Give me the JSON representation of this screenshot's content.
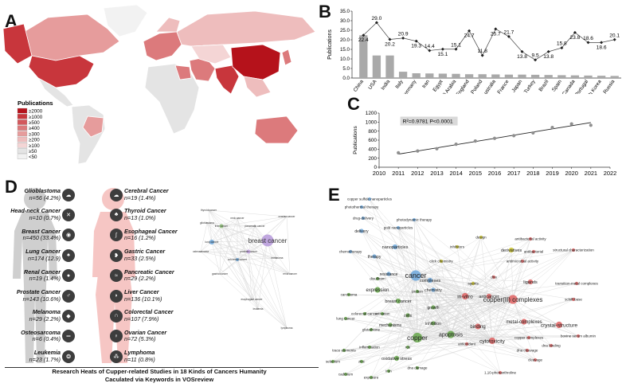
{
  "panels": {
    "a": "A",
    "b": "B",
    "c": "C",
    "d": "D",
    "e": "E"
  },
  "map_legend": {
    "title": "Publications",
    "levels": [
      "≥2000",
      "≥1000",
      "≥500",
      "≥400",
      "≥300",
      "≥200",
      "≥100",
      "≥50",
      "<50"
    ],
    "colors": [
      "#b5121b",
      "#c8363c",
      "#d3585c",
      "#dc7a7c",
      "#e69c9c",
      "#eebdbd",
      "#f4d5d5",
      "#e4e4e4",
      "#f2f2f2"
    ]
  },
  "chart_data": [
    {
      "type": "bar",
      "panel": "B",
      "categories": [
        "China",
        "USA",
        "India",
        "Italy",
        "Germany",
        "Iran",
        "Egypt",
        "Saudi Arabia",
        "England",
        "Poland",
        "Australia",
        "France",
        "Japan",
        "Turkey",
        "Brazil",
        "Spain",
        "Canada",
        "Portugal",
        "South Korea",
        "Russia"
      ],
      "series": [
        {
          "kind": "bar",
          "values": [
            22.4,
            11.8,
            11.8,
            3.3,
            2.5,
            2.4,
            2.3,
            2.2,
            2.0,
            2.0,
            1.9,
            1.8,
            1.8,
            1.7,
            1.6,
            1.5,
            1.4,
            1.3,
            1.2,
            1.1
          ]
        },
        {
          "kind": "line",
          "values": [
            22.4,
            29.0,
            20.2,
            20.9,
            19.3,
            14.4,
            15.1,
            15.1,
            24.7,
            11.8,
            25.7,
            21.7,
            13.8,
            9.5,
            13.8,
            15.8,
            23.8,
            18.6,
            18.6,
            20.1
          ]
        }
      ],
      "line_labels": [
        "22.4",
        "29.0",
        "20.2",
        "20.9",
        "19.3",
        "14.4",
        "15.1",
        "15.1",
        "24.7",
        "11.8",
        "25.7",
        "21.7",
        "13.8",
        "9.5",
        "13.8",
        "15.8",
        "23.8",
        "18.6",
        "18.6",
        "20.1"
      ],
      "ylabel": "Publications",
      "yticks": [
        "0.0",
        "5.0",
        "10.0",
        "15.0",
        "20.0",
        "25.0",
        "30.0",
        "35.0"
      ],
      "ylim": [
        0,
        35
      ],
      "colors": {
        "bar": "#a9a9a9",
        "line": "#444444"
      }
    },
    {
      "type": "scatter",
      "panel": "C",
      "x": [
        2011,
        2012,
        2013,
        2014,
        2015,
        2016,
        2017,
        2018,
        2019,
        2020,
        2021
      ],
      "y": [
        320,
        360,
        410,
        510,
        580,
        640,
        700,
        760,
        880,
        960,
        930
      ],
      "trend": {
        "x": [
          2011,
          2021
        ],
        "y": [
          290,
          990
        ]
      },
      "annotation": "R²=0.9781  P<0.0001",
      "ylabel": "Publications",
      "xticks": [
        "2010",
        "2011",
        "2012",
        "2013",
        "2014",
        "2015",
        "2016",
        "2017",
        "2018",
        "2019",
        "2020",
        "2021",
        "2022"
      ],
      "yticks": [
        "0",
        "200",
        "400",
        "600",
        "800",
        "1000",
        "1200"
      ],
      "xlim": [
        2010,
        2022
      ],
      "ylim": [
        0,
        1200
      ],
      "colors": {
        "point": "#8f8f8f",
        "line": "#222222"
      }
    }
  ],
  "cancers_left": [
    {
      "name": "Glioblastoma",
      "count": "n=56 (4.2%)",
      "icon": "brain-icon",
      "glyph": "☁"
    },
    {
      "name": "Head-neck Cancer",
      "count": "n=10 (0.7%)",
      "icon": "throat-icon",
      "glyph": "✕"
    },
    {
      "name": "Breast Cancer",
      "count": "n=450 (33.4%)",
      "icon": "breast-icon",
      "glyph": "◉"
    },
    {
      "name": "Lung Cancer",
      "count": "n=174 (12.9)",
      "icon": "lung-icon",
      "glyph": "♠"
    },
    {
      "name": "Renal Cancer",
      "count": "n=19 (1.4%)",
      "icon": "kidney-icon",
      "glyph": "●"
    },
    {
      "name": "Prostate Cancer",
      "count": "n=143 (10.6%)",
      "icon": "prostate-icon",
      "glyph": "♂"
    },
    {
      "name": "Melanoma",
      "count": "n=29 (2.2%)",
      "icon": "skin-icon",
      "glyph": "◆"
    },
    {
      "name": "Osteosarcoma",
      "count": "n=6 (0.4%)",
      "icon": "bone-icon",
      "glyph": "═"
    },
    {
      "name": "Leukemia",
      "count": "n=23 (1.7%)",
      "icon": "blood-cell-icon",
      "glyph": "❂"
    }
  ],
  "cancers_right": [
    {
      "name": "Cerebral Cancer",
      "count": "n=19 (1.4%)",
      "icon": "brain-icon",
      "glyph": "☁"
    },
    {
      "name": "Thyroid Cancer",
      "count": "n=13 (1.0%)",
      "icon": "thyroid-icon",
      "glyph": "♣"
    },
    {
      "name": "Esophageal Cancer",
      "count": "n=16 (1.2%)",
      "icon": "esophagus-icon",
      "glyph": "∫"
    },
    {
      "name": "Gastric Cancer",
      "count": "n=33 (2.5%)",
      "icon": "stomach-icon",
      "glyph": "❥"
    },
    {
      "name": "Pancreatic Cancer",
      "count": "n=29 (2.2%)",
      "icon": "pancreas-icon",
      "glyph": "≈"
    },
    {
      "name": "Liver Cancer",
      "count": "n=136 (10.1%)",
      "icon": "liver-icon",
      "glyph": "◗"
    },
    {
      "name": "Colorectal Cancer",
      "count": "n=107 (7.9%)",
      "icon": "colon-icon",
      "glyph": "∩"
    },
    {
      "name": "Ovarian Cancer",
      "count": "n=72 (5.3%)",
      "icon": "ovary-icon",
      "glyph": "♀"
    },
    {
      "name": "Lymphoma",
      "count": "n=11 (0.8%)",
      "icon": "lymph-icon",
      "glyph": "⁂"
    }
  ],
  "caption": [
    "Research Heats of Cupper-related Studies in 18 Kinds of Cancers Humanity",
    "Caculated via Keywords in VOSreview"
  ],
  "network_small": {
    "nodes": [
      {
        "label": "breast cancer",
        "color": "#b99ddc",
        "size": 15
      },
      {
        "label": "lung cancer",
        "color": "#6fa8dc",
        "size": 6
      },
      {
        "label": "liver cancer",
        "color": "#93c47d",
        "size": 5
      },
      {
        "label": "prostate cancer",
        "color": "#c9a8e8",
        "size": 5
      },
      {
        "label": "colorectal cancer",
        "color": "#6fa8dc",
        "size": 4
      },
      {
        "label": "pancreatic cancer",
        "color": "#ccc",
        "size": 3
      },
      {
        "label": "neck cancer",
        "color": "#ccc",
        "size": 2
      },
      {
        "label": "glioblastoma",
        "color": "#ccc",
        "size": 2
      },
      {
        "label": "thyroid cancer",
        "color": "#ccc",
        "size": 2
      },
      {
        "label": "osteosarcoma",
        "color": "#ccc",
        "size": 2
      },
      {
        "label": "gastric cancer",
        "color": "#ccc",
        "size": 2
      },
      {
        "label": "melanoma",
        "color": "#ccc",
        "size": 2
      },
      {
        "label": "renal cancer",
        "color": "#ccc",
        "size": 2
      },
      {
        "label": "esophageal cancer",
        "color": "#ccc",
        "size": 2
      },
      {
        "label": "leukemia",
        "color": "#ccc",
        "size": 2
      },
      {
        "label": "lymphoma",
        "color": "#ccc",
        "size": 2
      },
      {
        "label": "ovarian cancer",
        "color": "#ccc",
        "size": 2
      }
    ]
  },
  "network_big": {
    "clusters": {
      "red": "#e06666",
      "green": "#6aa84f",
      "blue": "#6fa8dc",
      "yellow": "#c9c32e"
    },
    "nodes": [
      {
        "label": "cancer",
        "cluster": "blue",
        "size": 12
      },
      {
        "label": "copper",
        "cluster": "green",
        "size": 11
      },
      {
        "label": "copper(II) complexes",
        "cluster": "red",
        "size": 10
      },
      {
        "label": "apoptosis",
        "cluster": "green",
        "size": 8
      },
      {
        "label": "in-vitro",
        "cluster": "red",
        "size": 7
      },
      {
        "label": "cytotoxicity",
        "cluster": "red",
        "size": 7
      },
      {
        "label": "crystal-structure",
        "cluster": "red",
        "size": 7
      },
      {
        "label": "metal-complexes",
        "cluster": "red",
        "size": 6
      },
      {
        "label": "binding",
        "cluster": "red",
        "size": 6
      },
      {
        "label": "expression",
        "cluster": "green",
        "size": 6
      },
      {
        "label": "breast cancer",
        "cluster": "green",
        "size": 5
      },
      {
        "label": "complexes",
        "cluster": "blue",
        "size": 5
      },
      {
        "label": "derivatives",
        "cluster": "yellow",
        "size": 5
      },
      {
        "label": "anticancer",
        "cluster": "red",
        "size": 5
      },
      {
        "label": "ligands",
        "cluster": "red",
        "size": 5
      },
      {
        "label": "nanoparticles",
        "cluster": "blue",
        "size": 5
      },
      {
        "label": "oxidative stress",
        "cluster": "green",
        "size": 5
      },
      {
        "label": "cells",
        "cluster": "green",
        "size": 4
      },
      {
        "label": "inhibition",
        "cluster": "green",
        "size": 4
      },
      {
        "label": "mechanisms",
        "cluster": "green",
        "size": 4
      },
      {
        "label": "growth",
        "cluster": "green",
        "size": 4
      },
      {
        "label": "chemistry",
        "cluster": "blue",
        "size": 4
      },
      {
        "label": "resistance",
        "cluster": "blue",
        "size": 4
      },
      {
        "label": "therapy",
        "cluster": "blue",
        "size": 4
      },
      {
        "label": "delivery",
        "cluster": "blue",
        "size": 4
      },
      {
        "label": "chemotherapy",
        "cluster": "blue",
        "size": 3
      },
      {
        "label": "photodynamic therapy",
        "cluster": "blue",
        "size": 3
      },
      {
        "label": "photothermal therapy",
        "cluster": "blue",
        "size": 3
      },
      {
        "label": "copper sulfide nanoparticles",
        "cluster": "blue",
        "size": 3
      },
      {
        "label": "gold nanoparticles",
        "cluster": "blue",
        "size": 3
      },
      {
        "label": "drug-delivery",
        "cluster": "blue",
        "size": 3
      },
      {
        "label": "click chemistry",
        "cluster": "yellow",
        "size": 3
      },
      {
        "label": "design",
        "cluster": "yellow",
        "size": 3
      },
      {
        "label": "inhibitors",
        "cluster": "yellow",
        "size": 3
      },
      {
        "label": "agents",
        "cluster": "yellow",
        "size": 3
      },
      {
        "label": "antibacterial activity",
        "cluster": "red",
        "size": 3
      },
      {
        "label": "antimicrobial activity",
        "cluster": "red",
        "size": 3
      },
      {
        "label": "antibacterial",
        "cluster": "red",
        "size": 3
      },
      {
        "label": "structural characterization",
        "cluster": "red",
        "size": 3
      },
      {
        "label": "transition-metal complexes",
        "cluster": "red",
        "size": 3
      },
      {
        "label": "schiff-base",
        "cluster": "red",
        "size": 3
      },
      {
        "label": "bovine serum albumin",
        "cluster": "red",
        "size": 3
      },
      {
        "label": "dna binding",
        "cluster": "red",
        "size": 3
      },
      {
        "label": "dna cleavage",
        "cluster": "red",
        "size": 3
      },
      {
        "label": "cleavage",
        "cluster": "red",
        "size": 3
      },
      {
        "label": "antioxidant",
        "cluster": "red",
        "size": 3
      },
      {
        "label": "1,10-phenanthroline",
        "cluster": "red",
        "size": 3
      },
      {
        "label": "copper complexes",
        "cluster": "red",
        "size": 3
      },
      {
        "label": "dna damage",
        "cluster": "green",
        "size": 3
      },
      {
        "label": "lung cancer",
        "cluster": "green",
        "size": 3
      },
      {
        "label": "colorectal cancer",
        "cluster": "green",
        "size": 3
      },
      {
        "label": "inflammation",
        "cluster": "green",
        "size": 3
      },
      {
        "label": "trace elements",
        "cluster": "green",
        "size": 3
      },
      {
        "label": "selenium",
        "cluster": "green",
        "size": 3
      },
      {
        "label": "cadmium",
        "cluster": "green",
        "size": 3
      },
      {
        "label": "exposure",
        "cluster": "green",
        "size": 3
      },
      {
        "label": "glutathione",
        "cluster": "green",
        "size": 3
      },
      {
        "label": "carcinoma",
        "cluster": "green",
        "size": 3
      },
      {
        "label": "disulfiram",
        "cluster": "green",
        "size": 3
      },
      {
        "label": "protein",
        "cluster": "green",
        "size": 3
      },
      {
        "label": "zinc",
        "cluster": "green",
        "size": 3
      },
      {
        "label": "iron",
        "cluster": "green",
        "size": 3
      },
      {
        "label": "activation",
        "cluster": "green",
        "size": 3
      },
      {
        "label": "dna",
        "cluster": "red",
        "size": 3
      },
      {
        "label": "ros",
        "cluster": "green",
        "size": 3
      }
    ]
  }
}
